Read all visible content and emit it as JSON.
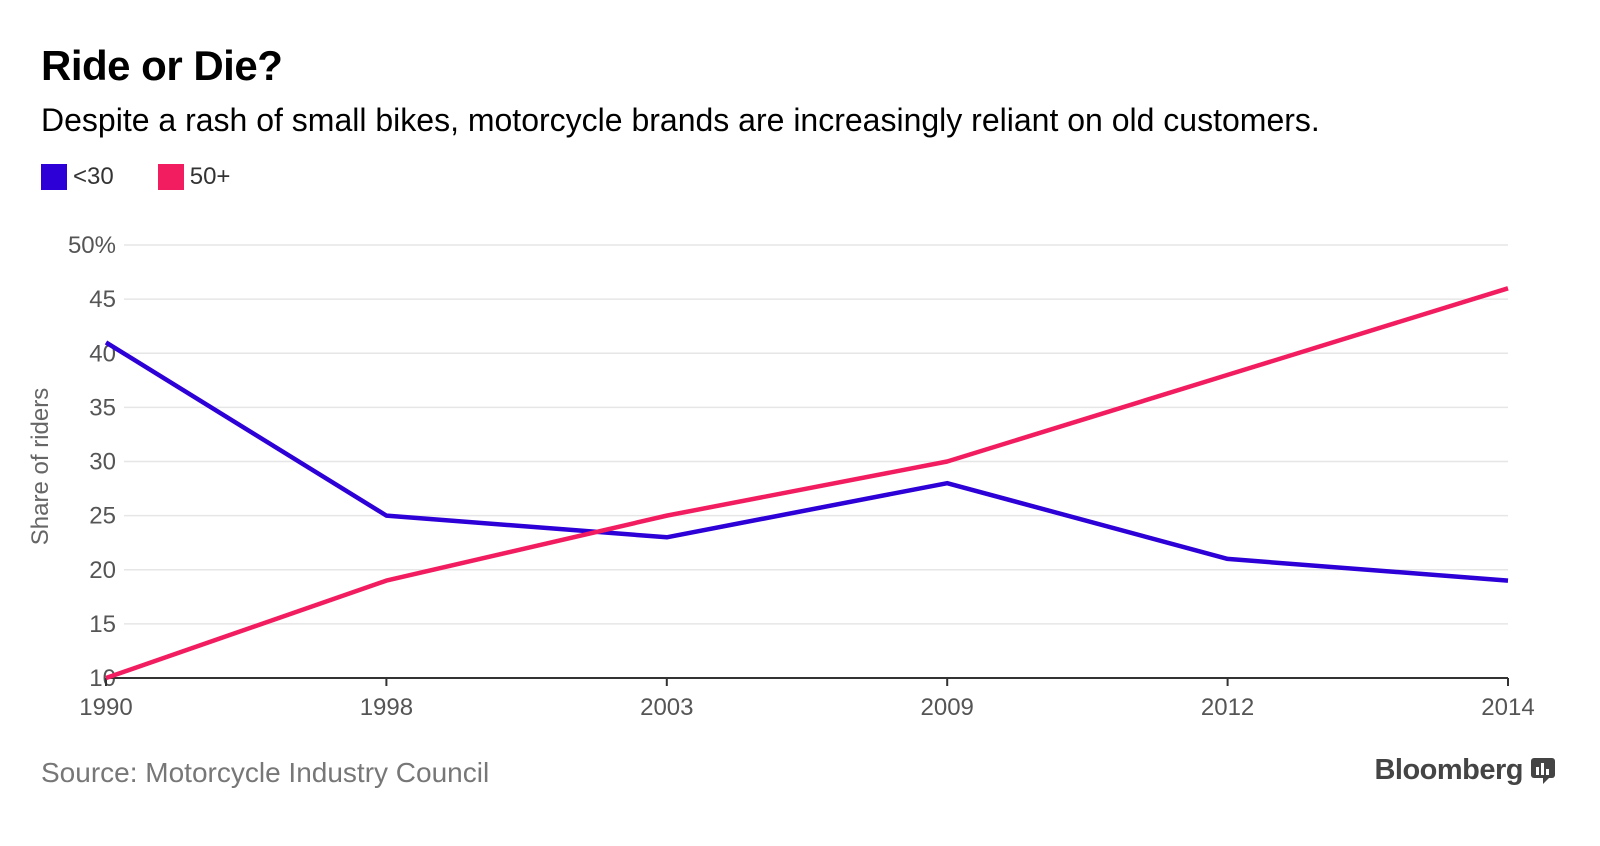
{
  "title": "Ride or Die?",
  "subtitle": "Despite a rash of small bikes, motorcycle brands are increasingly reliant on old customers.",
  "source": "Source: Motorcycle Industry Council",
  "brand": "Bloomberg",
  "brand_icon": "bloomberg-chart-icon",
  "colors": {
    "under30": "#2c00d6",
    "over50": "#f21d60",
    "grid": "#e6e6e6",
    "axis": "#333333",
    "tick_text": "#555555"
  },
  "chart_data": {
    "type": "line",
    "title": "Ride or Die?",
    "subtitle": "Despite a rash of small bikes, motorcycle brands are increasingly reliant on old customers.",
    "xlabel": "",
    "ylabel": "Share of riders",
    "x": [
      "1990",
      "1998",
      "2003",
      "2009",
      "2012",
      "2014"
    ],
    "ylim": [
      10,
      50
    ],
    "yticks": [
      10,
      15,
      20,
      25,
      30,
      35,
      40,
      45,
      50
    ],
    "ytick_labels": [
      "10",
      "15",
      "20",
      "25",
      "30",
      "35",
      "40",
      "45",
      "50%"
    ],
    "grid": true,
    "legend_position": "top-left",
    "series": [
      {
        "name": "<30",
        "color": "#2c00d6",
        "values": [
          41,
          25,
          23,
          28,
          21,
          19
        ]
      },
      {
        "name": "50+",
        "color": "#f21d60",
        "values": [
          10,
          19,
          25,
          30,
          38,
          46
        ]
      }
    ]
  }
}
